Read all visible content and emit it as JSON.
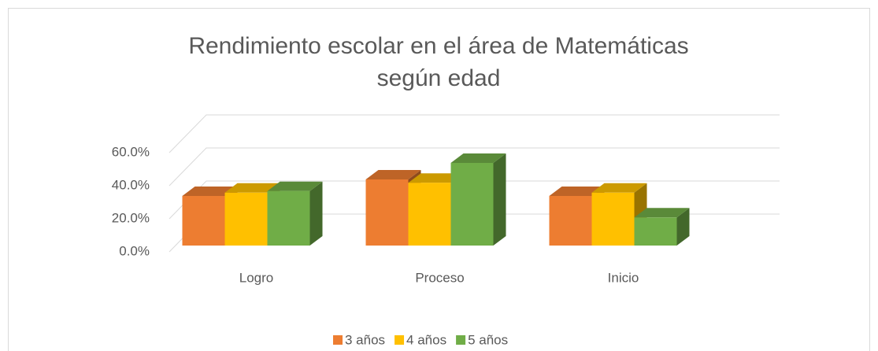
{
  "chart_data": {
    "type": "bar3d",
    "title": "Rendimiento escolar en el área de Matemáticas según edad",
    "categories": [
      "Logro",
      "Proceso",
      "Inicio"
    ],
    "series": [
      {
        "name": "3 años",
        "color": "#ed7d31",
        "values": [
          30,
          40,
          30
        ]
      },
      {
        "name": "4 años",
        "color": "#ffc000",
        "values": [
          32,
          38,
          32
        ]
      },
      {
        "name": "5 años",
        "color": "#70ad47",
        "values": [
          33,
          50,
          17
        ]
      }
    ],
    "ylim": [
      0,
      60
    ],
    "yticks": [
      {
        "value": 0,
        "label": "0.0%"
      },
      {
        "value": 20,
        "label": "20.0%"
      },
      {
        "value": 40,
        "label": "40.0%"
      },
      {
        "value": 60,
        "label": "60.0%"
      }
    ],
    "grid": true,
    "legend": "bottom"
  }
}
